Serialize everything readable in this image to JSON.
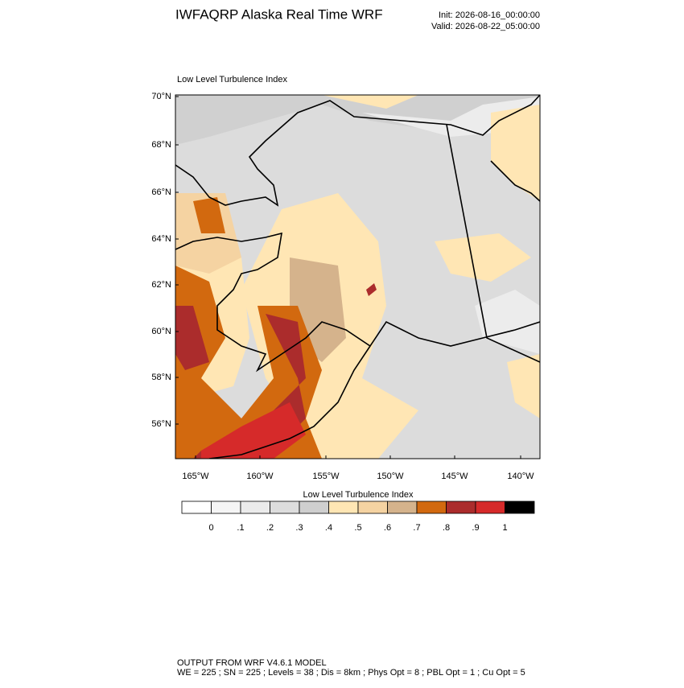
{
  "header": {
    "title": "IWFAQRP Alaska Real Time WRF",
    "init": "Init: 2026-08-16_00:00:00",
    "valid": "Valid: 2026-08-22_05:00:00"
  },
  "map": {
    "subtitle": "Low Level Turbulence Index",
    "lat_labels": [
      "70°N",
      "68°N",
      "66°N",
      "64°N",
      "62°N",
      "60°N",
      "58°N",
      "56°N"
    ],
    "lon_labels": [
      "165°W",
      "160°W",
      "155°W",
      "150°W",
      "145°W",
      "140°W"
    ]
  },
  "colorbar": {
    "title": "Low Level Turbulence Index",
    "colors": [
      "#ffffff",
      "#f5f5f5",
      "#ebebeb",
      "#dddddd",
      "#cfcfcf",
      "#ffe6b4",
      "#f5d3a2",
      "#d5b38c",
      "#d2690f",
      "#ab2c2c",
      "#d62a2a",
      "#000000"
    ],
    "labels": [
      "0",
      ".1",
      ".2",
      ".3",
      ".4",
      ".5",
      ".6",
      ".7",
      ".8",
      ".9",
      "1"
    ]
  },
  "footer": {
    "line1": "OUTPUT FROM WRF V4.6.1 MODEL",
    "line2": "WE = 225 ; SN = 225 ; Levels = 38 ; Dis = 8km ; Phys Opt = 8 ; PBL Opt = 1 ; Cu Opt = 5"
  }
}
